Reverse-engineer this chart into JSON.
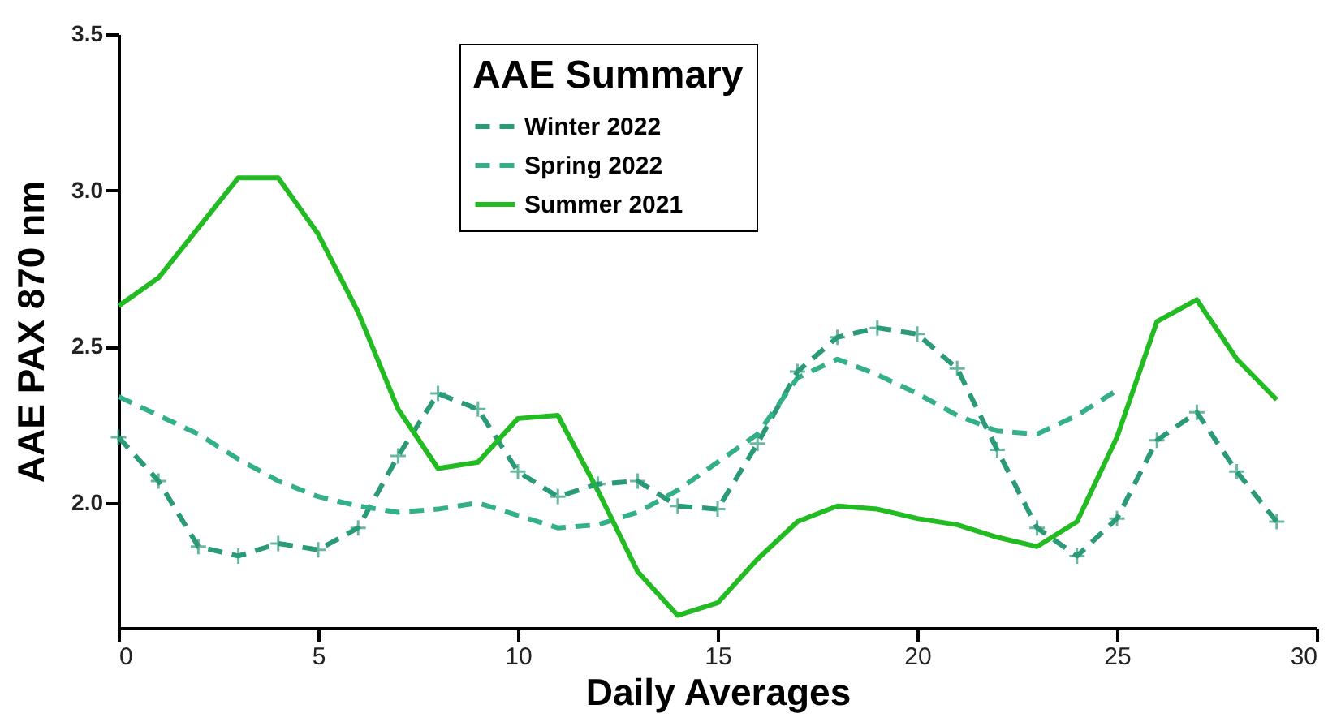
{
  "chart_data": {
    "type": "line",
    "xlabel": "Daily Averages",
    "ylabel": "AAE PAX 870 nm",
    "legend_title": "AAE Summary",
    "legend": "top",
    "grid": false,
    "xlim": [
      0,
      30
    ],
    "xticks": [
      0,
      5,
      10,
      15,
      20,
      25,
      30
    ],
    "ylim": [
      1.6,
      3.5
    ],
    "yticks": [
      {
        "value": 2,
        "label": "2.0"
      },
      2.5,
      {
        "value": 3,
        "label": "3.0"
      },
      3.5
    ],
    "x": [
      0,
      1,
      2,
      3,
      4,
      5,
      6,
      7,
      8,
      9,
      10,
      11,
      12,
      13,
      14,
      15,
      16,
      17,
      18,
      19,
      20,
      21,
      22,
      23,
      24,
      25,
      26,
      27,
      28,
      29
    ],
    "series": [
      {
        "name": "Winter 2022",
        "color": "#2a9a78",
        "line_style": "dashed",
        "marker": "cross",
        "values": [
          2.21,
          2.07,
          1.86,
          1.83,
          1.87,
          1.85,
          1.92,
          2.15,
          2.35,
          2.3,
          2.1,
          2.02,
          2.06,
          2.07,
          1.99,
          1.98,
          2.19,
          2.42,
          2.53,
          2.56,
          2.54,
          2.43,
          2.17,
          1.92,
          1.83,
          1.95,
          2.2,
          2.29,
          2.1,
          1.94
        ]
      },
      {
        "name": "Spring 2022",
        "color": "#33b08a",
        "line_style": "dashed",
        "values": [
          2.34,
          2.28,
          2.22,
          2.14,
          2.07,
          2.02,
          1.99,
          1.97,
          1.98,
          2.0,
          1.96,
          1.92,
          1.93,
          1.97,
          2.04,
          2.13,
          2.22,
          2.4,
          2.46,
          2.41,
          2.35,
          2.28,
          2.23,
          2.22,
          2.28,
          2.36,
          null,
          null,
          null,
          null
        ]
      },
      {
        "name": "Summer 2021",
        "color": "#22bb22",
        "line_style": "solid",
        "values": [
          2.63,
          2.72,
          2.88,
          3.04,
          3.04,
          2.86,
          2.61,
          2.3,
          2.11,
          2.13,
          2.27,
          2.28,
          2.04,
          1.78,
          1.64,
          1.68,
          1.82,
          1.94,
          1.99,
          1.98,
          1.95,
          1.93,
          1.89,
          1.86,
          1.94,
          2.21,
          2.58,
          2.65,
          2.46,
          2.33
        ]
      }
    ]
  }
}
